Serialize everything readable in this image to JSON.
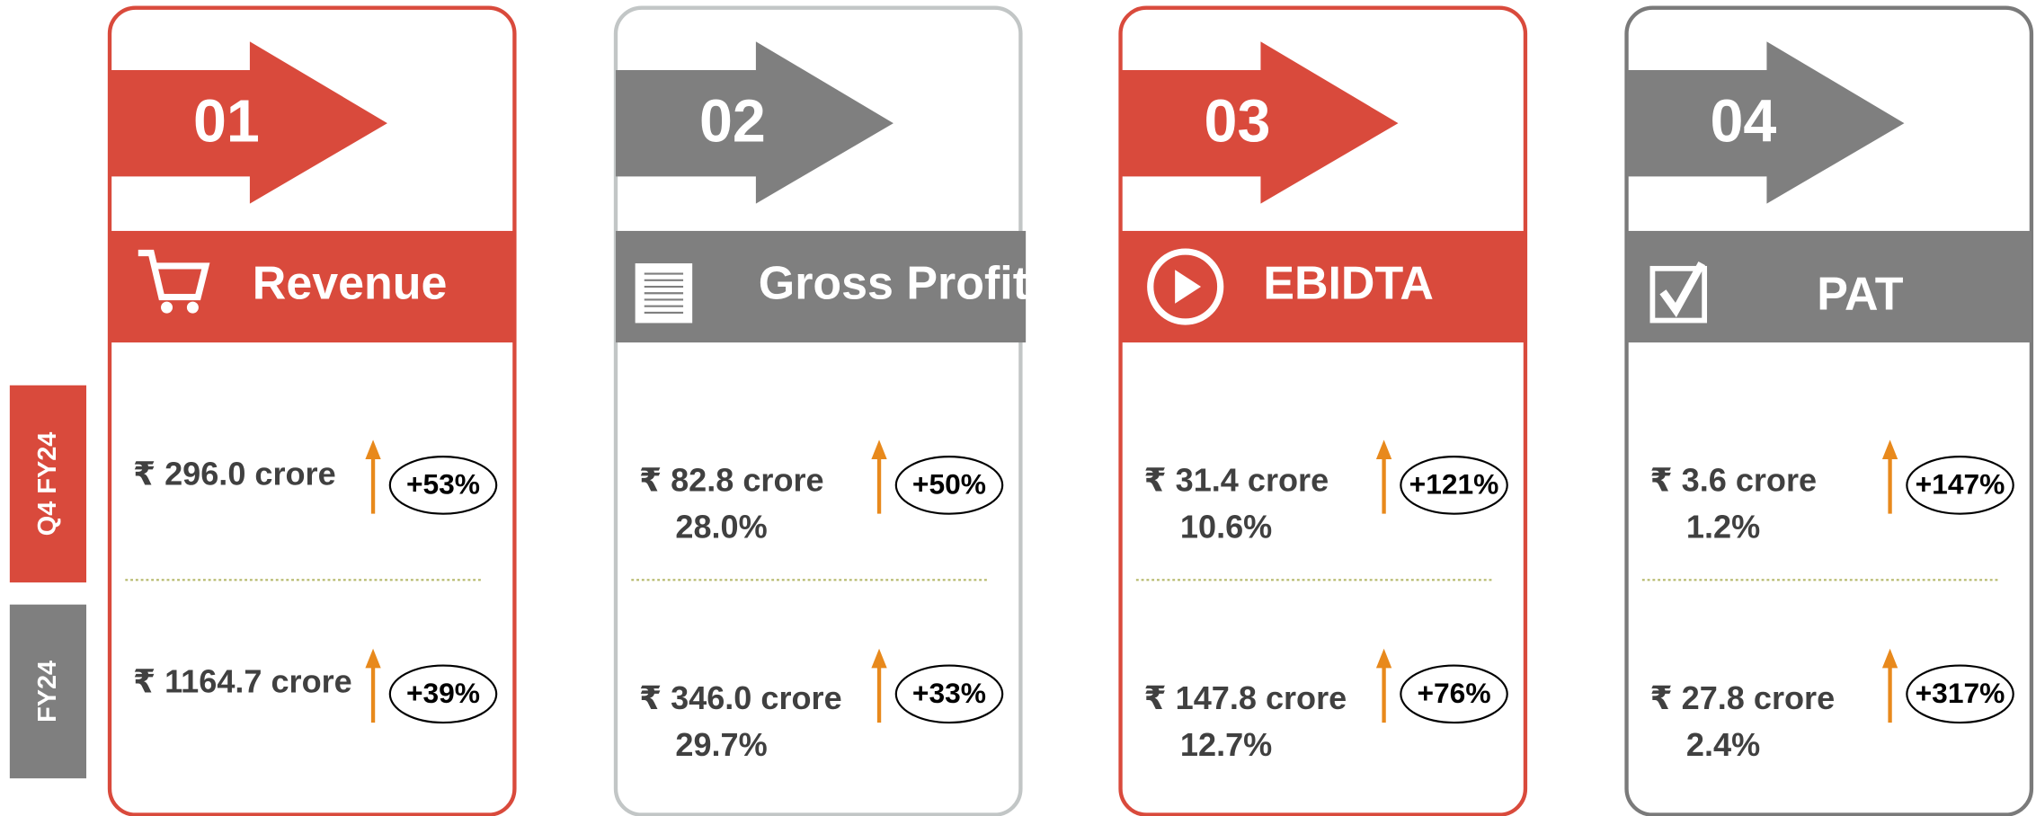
{
  "side_labels": [
    "Q4 FY24",
    "FY24"
  ],
  "side_colors": [
    "#d94a3c",
    "#7f7f7f"
  ],
  "cards": [
    {
      "number": "01",
      "title": "Revenue",
      "color": "#d94a3c",
      "border": "#d94a3c",
      "q4": {
        "amount": "₹ 296.0 crore",
        "growth": "+53%"
      },
      "fy": {
        "amount": "₹ 1164.7 crore",
        "growth": "+39%"
      }
    },
    {
      "number": "02",
      "title": "Gross Profit",
      "color": "#7f7f7f",
      "border": "#c2c6c6",
      "q4": {
        "amount": "₹ 82.8 crore",
        "margin": "28.0%",
        "growth": "+50%"
      },
      "fy": {
        "amount": "₹ 346.0 crore",
        "margin": "29.7%",
        "growth": "+33%"
      }
    },
    {
      "number": "03",
      "title": "EBIDTA",
      "color": "#d94a3c",
      "border": "#d94a3c",
      "q4": {
        "amount": "₹ 31.4 crore",
        "margin": "10.6%",
        "growth": "+121%"
      },
      "fy": {
        "amount": "₹ 147.8 crore",
        "margin": "12.7%",
        "growth": "+76%"
      }
    },
    {
      "number": "04",
      "title": "PAT",
      "color": "#7f7f7f",
      "border": "#7a7a7a",
      "q4": {
        "amount": "₹ 3.6 crore",
        "margin": "1.2%",
        "growth": "+147%"
      },
      "fy": {
        "amount": "₹ 27.8 crore",
        "margin": "2.4%",
        "growth": "+317%"
      }
    }
  ]
}
